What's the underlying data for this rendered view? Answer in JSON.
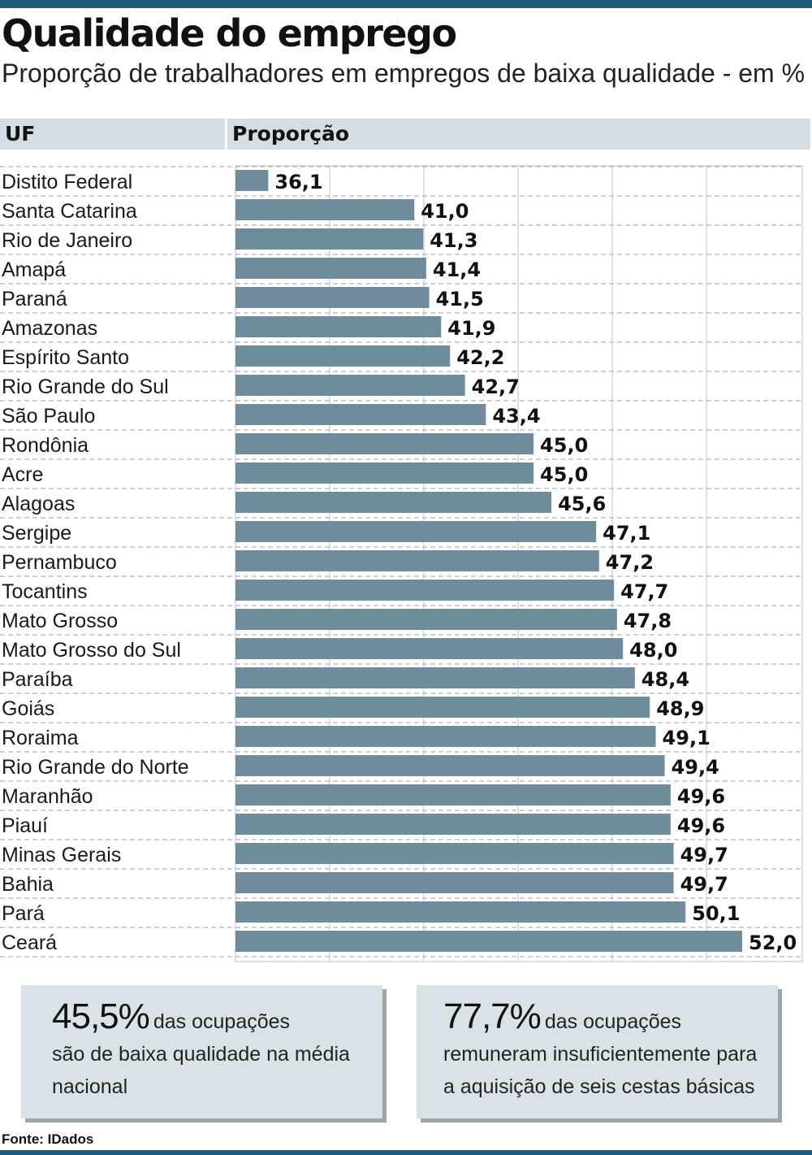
{
  "title": "Qualidade do emprego",
  "subtitle": "Proporção de trabalhadores em empregos de baixa qualidade - em %",
  "header": {
    "uf_label": "UF",
    "value_label": "Proporção"
  },
  "colors": {
    "accent": "#1e5d79",
    "bar": "#6e8c9c",
    "header_bg": "#d3dde3",
    "box_bg": "#d9e2e7"
  },
  "chart_data": {
    "type": "bar",
    "orientation": "horizontal",
    "title": "Qualidade do emprego",
    "subtitle": "Proporção de trabalhadores em empregos de baixa qualidade - em %",
    "xlabel": "Proporção",
    "ylabel": "UF",
    "xlim": [
      35,
      52
    ],
    "grid": true,
    "categories": [
      "Distito Federal",
      "Santa Catarina",
      "Rio de Janeiro",
      "Amapá",
      "Paraná",
      "Amazonas",
      "Espírito Santo",
      "Rio Grande do Sul",
      "São Paulo",
      "Rondônia",
      "Acre",
      "Alagoas",
      "Sergipe",
      "Pernambuco",
      "Tocantins",
      "Mato Grosso",
      "Mato Grosso do Sul",
      "Paraíba",
      "Goiás",
      "Roraima",
      "Rio Grande do Norte",
      "Maranhão",
      "Piauí",
      "Minas Gerais",
      "Bahia",
      "Pará",
      "Ceará"
    ],
    "values": [
      36.1,
      41.0,
      41.3,
      41.4,
      41.5,
      41.9,
      42.2,
      42.7,
      43.4,
      45.0,
      45.0,
      45.6,
      47.1,
      47.2,
      47.7,
      47.8,
      48.0,
      48.4,
      48.9,
      49.1,
      49.4,
      49.6,
      49.6,
      49.7,
      49.7,
      50.1,
      52.0
    ],
    "value_labels": [
      "36,1",
      "41,0",
      "41,3",
      "41,4",
      "41,5",
      "41,9",
      "42,2",
      "42,7",
      "43,4",
      "45,0",
      "45,0",
      "45,6",
      "47,1",
      "47,2",
      "47,7",
      "47,8",
      "48,0",
      "48,4",
      "48,9",
      "49,1",
      "49,4",
      "49,6",
      "49,6",
      "49,7",
      "49,7",
      "50,1",
      "52,0"
    ]
  },
  "boxes": [
    {
      "pct": "45,5%",
      "line1": "das ocupações",
      "rest": "são de baixa qualidade na média nacional"
    },
    {
      "pct": "77,7%",
      "line1": "das ocupações",
      "rest": "remuneram insuficientemente para a aquisição de seis cestas básicas"
    }
  ],
  "source": "Fonte: IDados"
}
